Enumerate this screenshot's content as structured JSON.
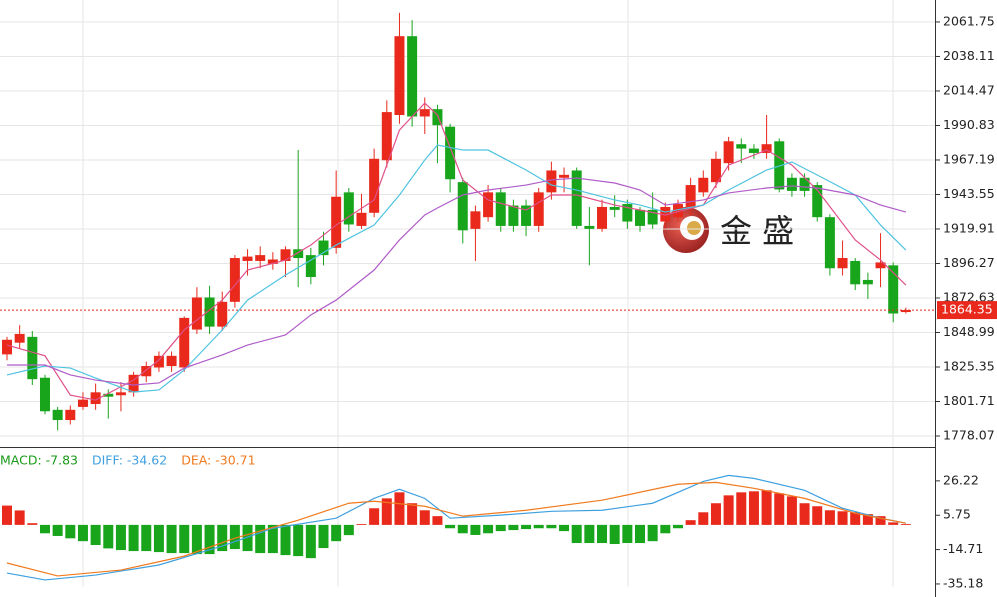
{
  "chart_data": [
    {
      "type": "candlestick",
      "open": [
        1834,
        1842,
        1846,
        1818,
        1796,
        1789,
        1798,
        1800,
        1807,
        1806,
        1808,
        1819,
        1825,
        1826,
        1825,
        1851,
        1873,
        1853,
        1870,
        1898,
        1898,
        1896,
        1898,
        1906,
        1902,
        1912,
        1907,
        1945,
        1922,
        1931,
        1967,
        1998,
        2052,
        1997,
        2002,
        1990,
        1952,
        1920,
        1928,
        1945,
        1936,
        1936,
        1922,
        1945,
        1955,
        1960,
        1922,
        1920,
        1935,
        1937,
        1933,
        1933,
        1925,
        1928,
        1935,
        1945,
        1952,
        1965,
        1978,
        1975,
        1972,
        1980,
        1955,
        1955,
        1950,
        1928,
        1893,
        1898,
        1885,
        1893,
        1895,
        1863
      ],
      "high": [
        1846,
        1854,
        1850,
        1820,
        1798,
        1799,
        1808,
        1814,
        1810,
        1815,
        1822,
        1829,
        1836,
        1836,
        1860,
        1880,
        1881,
        1877,
        1902,
        1906,
        1908,
        1904,
        1908,
        1974,
        1907,
        1918,
        1960,
        1948,
        1944,
        1975,
        2008,
        2068,
        2063,
        2010,
        2005,
        1992,
        1955,
        1936,
        1950,
        1948,
        1940,
        1940,
        1948,
        1966,
        1962,
        1962,
        1935,
        1940,
        1943,
        1940,
        1935,
        1945,
        1938,
        1940,
        1955,
        1960,
        1973,
        1983,
        1982,
        1978,
        1998,
        1982,
        1958,
        1958,
        1952,
        1930,
        1912,
        1900,
        1890,
        1917,
        1897,
        1866
      ],
      "low": [
        1830,
        1838,
        1813,
        1793,
        1782,
        1786,
        1796,
        1796,
        1790,
        1795,
        1805,
        1815,
        1822,
        1822,
        1822,
        1848,
        1848,
        1850,
        1866,
        1888,
        1893,
        1892,
        1887,
        1880,
        1882,
        1895,
        1903,
        1918,
        1920,
        1928,
        1962,
        1992,
        1990,
        1985,
        1965,
        1945,
        1910,
        1898,
        1925,
        1918,
        1918,
        1915,
        1918,
        1940,
        1945,
        1920,
        1895,
        1918,
        1928,
        1920,
        1918,
        1920,
        1920,
        1925,
        1930,
        1942,
        1948,
        1960,
        1965,
        1968,
        1968,
        1945,
        1942,
        1942,
        1925,
        1888,
        1888,
        1878,
        1872,
        1880,
        1856,
        1862
      ],
      "close": [
        1844,
        1848,
        1817,
        1795,
        1789,
        1796,
        1803,
        1808,
        1805,
        1808,
        1820,
        1826,
        1833,
        1833,
        1859,
        1873,
        1853,
        1870,
        1900,
        1901,
        1902,
        1899,
        1906,
        1900,
        1887,
        1902,
        1942,
        1923,
        1931,
        1968,
        2000,
        2052,
        1997,
        2002,
        1991,
        1954,
        1919,
        1932,
        1945,
        1922,
        1922,
        1922,
        1945,
        1960,
        1957,
        1922,
        1920,
        1935,
        1933,
        1925,
        1922,
        1923,
        1935,
        1937,
        1950,
        1955,
        1968,
        1980,
        1975,
        1972,
        1978,
        1947,
        1946,
        1946,
        1928,
        1893,
        1900,
        1882,
        1882,
        1897,
        1862,
        1864.35
      ],
      "up_color": "#e8291b",
      "down_color": "#18a51c",
      "lines": [
        {
          "color": "#e0508a",
          "x": [
            0,
            3,
            5,
            7,
            10,
            12,
            14,
            17,
            19,
            22,
            24,
            26,
            29,
            31,
            33,
            34,
            36,
            38,
            41,
            43,
            45,
            48,
            50,
            52,
            55,
            57,
            60,
            62,
            64,
            67,
            69,
            71
          ],
          "values": [
            1840.4,
            1833,
            1806.1,
            1802.7,
            1816.4,
            1830.1,
            1850.7,
            1871.2,
            1891.8,
            1898.6,
            1908.9,
            1922.6,
            1939.8,
            1987.7,
            2006.2,
            1998,
            1953.5,
            1939.8,
            1932.9,
            1943.2,
            1943.2,
            1936.3,
            1932.9,
            1929.5,
            1936.3,
            1963.7,
            1974,
            1963.7,
            1946.6,
            1912.4,
            1898.6,
            1881.5
          ]
        },
        {
          "color": "#4fc3e0",
          "x": [
            0,
            3,
            5,
            7,
            10,
            12,
            14,
            17,
            19,
            22,
            24,
            26,
            29,
            31,
            33,
            34,
            36,
            38,
            41,
            43,
            45,
            48,
            50,
            52,
            55,
            57,
            60,
            62,
            64,
            67,
            69,
            71
          ],
          "values": [
            1819.9,
            1826,
            1824.6,
            1817.8,
            1808.2,
            1809.6,
            1823.3,
            1850.7,
            1871.2,
            1888.4,
            1898.6,
            1908.9,
            1922.6,
            1943.2,
            1967.2,
            1977.4,
            1974,
            1974,
            1960.3,
            1950,
            1946.6,
            1939.8,
            1936.3,
            1931.5,
            1936.3,
            1946.6,
            1960.3,
            1965.8,
            1956.9,
            1943.2,
            1922.6,
            1905.5
          ]
        },
        {
          "color": "#b05cc8",
          "x": [
            0,
            3,
            5,
            7,
            10,
            12,
            14,
            17,
            19,
            22,
            24,
            26,
            29,
            31,
            33,
            34,
            36,
            38,
            41,
            43,
            45,
            48,
            50,
            52,
            55,
            57,
            60,
            62,
            64,
            67,
            69,
            71
          ],
          "values": [
            1826.7,
            1826.7,
            1819.9,
            1816.4,
            1813,
            1814.4,
            1824.6,
            1833.6,
            1840.4,
            1847.3,
            1861,
            1871.2,
            1891.8,
            1912.4,
            1929.5,
            1934.3,
            1943.2,
            1946.6,
            1950,
            1953.5,
            1954.8,
            1951.4,
            1946.6,
            1936.3,
            1939.8,
            1944.6,
            1948,
            1949.4,
            1948,
            1943.2,
            1936.3,
            1931.5
          ]
        }
      ],
      "current_price": 1864.35,
      "current_color": "#e8291b",
      "ylim": [
        1770.53,
        2076.8
      ],
      "yticks": [
        2061.75,
        2038.11,
        2014.47,
        1990.83,
        1967.19,
        1943.55,
        1919.91,
        1896.27,
        1872.63,
        1848.99,
        1825.35,
        1801.71,
        1778.07
      ],
      "grid": true,
      "logo_text": "金 盛"
    },
    {
      "type": "macd",
      "legend": [
        "MACD: -7.83",
        "DIFF: -34.62",
        "DEA: -30.71"
      ],
      "legend_colors": [
        "#1a9a1a",
        "#3fa0e0",
        "#f07a1e"
      ],
      "values": [
        11.5,
        8.6,
        1.0,
        -5,
        -6.6,
        -8,
        -9.7,
        -12,
        -14,
        -15,
        -15.6,
        -15.6,
        -16.2,
        -16.8,
        -16.8,
        -17.4,
        -17.4,
        -15.6,
        -14.4,
        -15.6,
        -16.8,
        -16.8,
        -18,
        -18.6,
        -19.8,
        -13.8,
        -9.7,
        -6.1,
        0.5,
        9.9,
        15.8,
        19.4,
        12.9,
        8.7,
        5.2,
        -2,
        -5,
        -6,
        -5,
        -3.7,
        -3.1,
        -2.5,
        -2,
        -2,
        -3.7,
        -10.8,
        -10.8,
        -10.8,
        -11.4,
        -10.8,
        -10.8,
        -9.7,
        -5,
        -2,
        2.8,
        7.5,
        12.9,
        17.6,
        19.4,
        20,
        20.6,
        18.8,
        17,
        12.9,
        11.1,
        8.7,
        8.1,
        7.5,
        6.4,
        5.2,
        1.5,
        0.5
      ],
      "up_color": "#e8291b",
      "down_color": "#18a51c",
      "series": [
        {
          "name": "DIFF",
          "color": "#3fa0e0",
          "x": [
            0,
            3,
            7,
            12,
            17,
            21,
            26,
            29,
            31,
            33,
            35,
            39,
            43,
            47,
            51,
            55,
            57,
            59,
            63,
            66,
            69,
            71
          ],
          "values": [
            -28.7,
            -32.8,
            -29.9,
            -23.9,
            -12.6,
            -2,
            4,
            15.8,
            21.2,
            15.8,
            4,
            5.8,
            8.1,
            8.7,
            12.9,
            25.9,
            29.5,
            27.7,
            20.6,
            9.9,
            4,
            1
          ]
        },
        {
          "name": "DEA",
          "color": "#f07a1e",
          "x": [
            0,
            4,
            9,
            14,
            18,
            23,
            27,
            29,
            33,
            36,
            41,
            47,
            53,
            56,
            59,
            63,
            67,
            71
          ],
          "values": [
            -22.7,
            -30.4,
            -26.9,
            -18.6,
            -7.9,
            2.8,
            12.9,
            14.1,
            11.1,
            5.2,
            8.7,
            14.7,
            24.2,
            25.3,
            21.8,
            15.8,
            6.9,
            1
          ]
        }
      ],
      "ylim": [
        -37,
        45.8
      ],
      "yticks": [
        26.22,
        5.75,
        -14.71,
        -35.18
      ]
    }
  ]
}
